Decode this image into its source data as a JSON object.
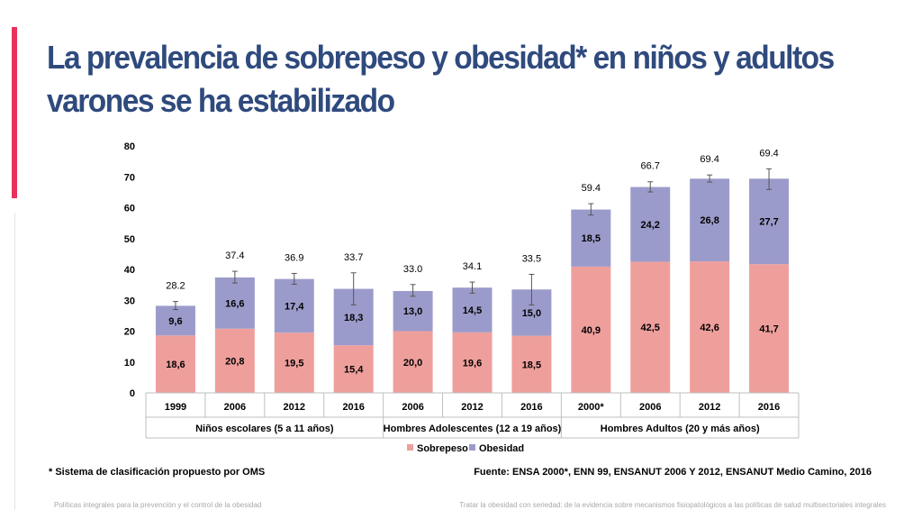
{
  "title": "La prevalencia de sobrepeso y obesidad* en niños y adultos varones se ha estabilizado",
  "footnote": "* Sistema de clasificación propuesto por OMS",
  "source": "Fuente: ENSA 2000*, ENN 99, ENSANUT 2006 Y 2012, ENSANUT Medio Camino, 2016",
  "footer": {
    "left": "Políticas integrales para la prevención y el control de la obesidad",
    "right": "Tratar la obesidad con seriedad: de la evidencia sobre mecanismos fisiopatológicos a las políticas de salud multisectoriales integrales"
  },
  "colors": {
    "accent": "#e8325b",
    "title": "#2f4a7d",
    "sobrepeso": "#ee9f9c",
    "obesidad": "#9b9bcb"
  },
  "chart_data": {
    "type": "bar",
    "stacked": true,
    "ylim": [
      0,
      80
    ],
    "yticks": [
      "0",
      "10",
      "20",
      "30",
      "40",
      "50",
      "60",
      "70",
      "80"
    ],
    "categories": [
      "1999",
      "2006",
      "2012",
      "2016",
      "2006",
      "2012",
      "2016",
      "2000*",
      "2006",
      "2012",
      "2016"
    ],
    "groups": [
      {
        "label": "Niños escolares (5 a 11 años)",
        "count": 4
      },
      {
        "label": "Hombres Adolescentes (12 a 19 años)",
        "count": 3
      },
      {
        "label": "Hombres Adultos (20 y más años)",
        "count": 4
      }
    ],
    "series": [
      {
        "name": "Sobrepeso",
        "values": [
          18.6,
          20.8,
          19.5,
          15.4,
          20.0,
          19.6,
          18.5,
          40.9,
          42.5,
          42.6,
          41.7
        ],
        "labels": [
          "18,6",
          "20,8",
          "19,5",
          "15,4",
          "20,0",
          "19,6",
          "18,5",
          "40,9",
          "42,5",
          "42,6",
          "41,7"
        ]
      },
      {
        "name": "Obesidad",
        "values": [
          9.6,
          16.6,
          17.4,
          18.3,
          13.0,
          14.5,
          15.0,
          18.5,
          24.2,
          26.8,
          27.7
        ],
        "labels": [
          "9,6",
          "16,6",
          "17,4",
          "18,3",
          "13,0",
          "14,5",
          "15,0",
          "18,5",
          "24,2",
          "26,8",
          "27,7"
        ]
      }
    ],
    "totals": [
      "28.2",
      "37.4",
      "36.9",
      "33.7",
      "33.0",
      "34.1",
      "33.5",
      "59.4",
      "66.7",
      "69.4",
      "69.4"
    ],
    "error_bars": [
      [
        27.0,
        29.6
      ],
      [
        35.6,
        39.4
      ],
      [
        35.2,
        38.7
      ],
      [
        28.5,
        38.9
      ],
      [
        31.3,
        35.1
      ],
      [
        32.3,
        35.9
      ],
      [
        28.5,
        38.4
      ],
      [
        57.6,
        61.3
      ],
      [
        65.1,
        68.4
      ],
      [
        68.3,
        70.6
      ],
      [
        65.9,
        72.6
      ]
    ],
    "legend": [
      "Sobrepeso",
      "Obesidad"
    ],
    "legend_position": "bottom"
  }
}
